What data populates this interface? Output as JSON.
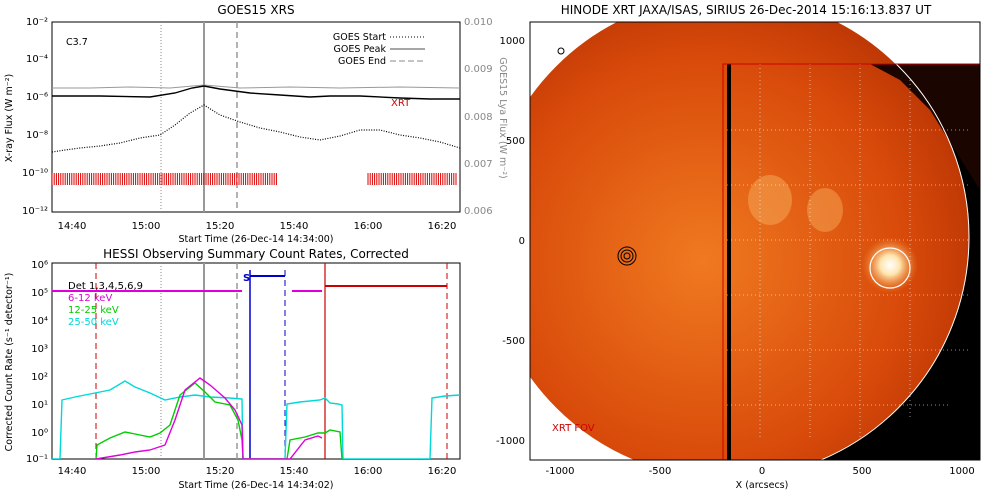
{
  "goes_panel": {
    "title": "GOES15 XRS",
    "class_label": "C3.7",
    "ylabel_left": "X-ray Flux (W m⁻²)",
    "ylabel_right": "GOES15 Lya Flux (W m⁻²)",
    "xlabel": "Start Time (26-Dec-14 14:34:00)",
    "xrt_label": "XRT",
    "legend": [
      "GOES Start",
      "GOES Peak",
      "GOES End"
    ],
    "y_ticks": [
      "10⁻²",
      "10⁻⁴",
      "10⁻⁶",
      "10⁻⁸",
      "10⁻¹⁰",
      "10⁻¹²"
    ],
    "y_ticks_right": [
      "0.010",
      "0.009",
      "0.008",
      "0.007",
      "0.006"
    ],
    "x_ticks": [
      "14:40",
      "15:00",
      "15:20",
      "15:40",
      "16:00",
      "16:20"
    ]
  },
  "hessi_panel": {
    "title": "HESSI Observing Summary Count Rates, Corrected",
    "ylabel": "Corrected Count Rate (s⁻¹ detector⁻¹)",
    "xlabel": "Start Time (26-Dec-14 14:34:02)",
    "s_label": "S",
    "legend": [
      {
        "label": "Det 1,3,4,5,6,9",
        "color": "#000000"
      },
      {
        "label": "6-12 keV",
        "color": "#dd00dd"
      },
      {
        "label": "12-25 keV",
        "color": "#00cc00"
      },
      {
        "label": "25-50 keV",
        "color": "#00d8d8"
      }
    ],
    "y_ticks": [
      "10⁶",
      "10⁵",
      "10⁴",
      "10³",
      "10²",
      "10¹",
      "10⁰",
      "10⁻¹"
    ],
    "x_ticks": [
      "14:40",
      "15:00",
      "15:20",
      "15:40",
      "16:00",
      "16:20"
    ]
  },
  "xrt_panel": {
    "title": "HINODE XRT JAXA/ISAS, SIRIUS 26-Dec-2014 15:16:13.837 UT",
    "xlabel": "X (arcsecs)",
    "fov_label": "XRT FOV",
    "y_ticks": [
      "1000",
      "500",
      "0",
      "-500",
      "-1000"
    ],
    "x_ticks": [
      "-1000",
      "-500",
      "0",
      "500",
      "1000"
    ]
  },
  "colors": {
    "goes_lya": "#999999",
    "xrt_red": "#cc0000",
    "saa_blue": "#0000cc",
    "attenuator": "#dd00dd"
  },
  "chart_data": [
    {
      "type": "line",
      "title": "GOES15 XRS",
      "xlabel": "Start Time (26-Dec-14 14:34:00)",
      "ylabel": "X-ray Flux (W m⁻²)",
      "y_scale": "log",
      "ylim": [
        1e-12,
        0.01
      ],
      "y2lim": [
        0.006,
        0.01
      ],
      "x_range": [
        "14:34",
        "16:25"
      ],
      "markers": {
        "goes_start": "15:04",
        "goes_peak": "15:16",
        "goes_end": "15:24"
      },
      "series": [
        {
          "name": "XRT",
          "x": [
            "14:34",
            "14:50",
            "15:05",
            "15:16",
            "15:30",
            "15:45",
            "16:00",
            "16:15",
            "16:25"
          ],
          "values": [
            2e-06,
            2e-06,
            3e-06,
            1e-05,
            4e-06,
            2.5e-06,
            2e-06,
            1.5e-06,
            1.3e-06
          ]
        },
        {
          "x": [
            "14:34",
            "14:50",
            "15:04",
            "15:10",
            "15:16",
            "15:25",
            "15:40",
            "15:55",
            "16:10",
            "16:25"
          ],
          "values": [
            5e-09,
            8e-09,
            2e-08,
            1e-07,
            3e-07,
            2e-07,
            4e-08,
            2e-08,
            8e-08,
            3e-08
          ]
        },
        {
          "x": [
            "14:34",
            "15:16",
            "16:25"
          ],
          "values": [
            0.0086,
            0.0087,
            0.0086
          ],
          "axis": "right"
        }
      ]
    },
    {
      "type": "line",
      "title": "HESSI Observing Summary Count Rates, Corrected",
      "xlabel": "Start Time (26-Dec-14 14:34:02)",
      "ylabel": "Corrected Count Rate (s⁻¹ detector⁻¹)",
      "y_scale": "log",
      "ylim": [
        0.1,
        1000000.0
      ],
      "series": [
        {
          "name": "6-12 keV",
          "x": [
            "14:47",
            "15:00",
            "15:07",
            "15:13",
            "15:18",
            "15:25",
            "15:35",
            "15:40"
          ],
          "values": [
            0.1,
            0.15,
            0.3,
            20,
            70,
            10,
            0.5,
            1
          ]
        },
        {
          "name": "12-25 keV",
          "x": [
            "14:47",
            "14:55",
            "15:05",
            "15:13",
            "15:18",
            "15:25",
            "15:34",
            "15:40",
            "15:48",
            "15:53"
          ],
          "values": [
            0.3,
            0.8,
            0.5,
            40,
            15,
            8,
            0.5,
            1,
            1.5,
            0.3
          ]
        },
        {
          "name": "25-50 keV",
          "x": [
            "14:34",
            "14:40",
            "14:50",
            "15:00",
            "15:10",
            "15:20",
            "15:25",
            "15:36",
            "15:45",
            "15:53",
            "16:11",
            "16:25"
          ],
          "values": [
            15,
            18,
            60,
            15,
            20,
            20,
            15,
            15,
            18,
            12,
            15,
            20
          ]
        }
      ]
    },
    {
      "type": "heatmap",
      "title": "HINODE XRT JAXA/ISAS, SIRIUS 26-Dec-2014 15:16:13.837 UT",
      "xlabel": "X (arcsecs)",
      "xlim": [
        -1100,
        1100
      ],
      "ylim": [
        -1100,
        1100
      ]
    }
  ]
}
